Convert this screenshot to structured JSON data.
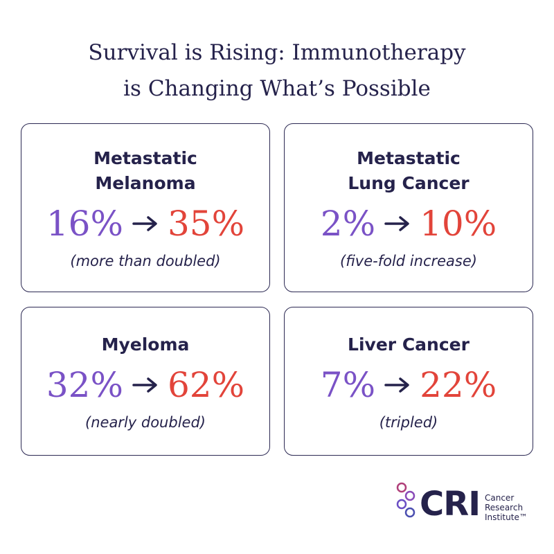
{
  "header": {
    "title_lines": [
      "Survival is Rising: Immunotherapy",
      "is Changing What’s Possible"
    ]
  },
  "cards": [
    {
      "name_lines": [
        "Metastatic",
        "Melanoma"
      ],
      "from": "16%",
      "to": "35%",
      "note": "(more than doubled)"
    },
    {
      "name_lines": [
        "Metastatic",
        "Lung Cancer"
      ],
      "from": "2%",
      "to": "10%",
      "note": "(five-fold increase)"
    },
    {
      "name_lines": [
        "Myeloma"
      ],
      "from": "32%",
      "to": "62%",
      "note": "(nearly doubled)"
    },
    {
      "name_lines": [
        "Liver Cancer"
      ],
      "from": "7%",
      "to": "22%",
      "note": "(tripled)"
    }
  ],
  "logo": {
    "mark": "CRI",
    "name_lines": [
      "Cancer",
      "Research",
      "Institute™"
    ]
  }
}
